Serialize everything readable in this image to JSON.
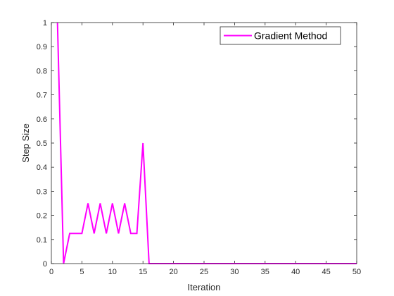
{
  "chart_data": {
    "type": "line",
    "xlabel": "Iteration",
    "ylabel": "Step Size",
    "xlim": [
      0,
      50
    ],
    "ylim": [
      0,
      1
    ],
    "xticks": [
      0,
      5,
      10,
      15,
      20,
      25,
      30,
      35,
      40,
      45,
      50
    ],
    "yticks": [
      0,
      0.1,
      0.2,
      0.3,
      0.4,
      0.5,
      0.6,
      0.7,
      0.8,
      0.9,
      1
    ],
    "grid": false,
    "legend": {
      "position": "top-right"
    },
    "series": [
      {
        "name": "Gradient Method",
        "color": "#ff00ff",
        "x": [
          1,
          2,
          3,
          4,
          5,
          6,
          7,
          8,
          9,
          10,
          11,
          12,
          13,
          14,
          15,
          16,
          17,
          18,
          19,
          20,
          21,
          22,
          23,
          24,
          25,
          26,
          27,
          28,
          29,
          30,
          31,
          32,
          33,
          34,
          35,
          36,
          37,
          38,
          39,
          40,
          41,
          42,
          43,
          44,
          45,
          46,
          47,
          48,
          49,
          50
        ],
        "y": [
          1,
          0,
          0.125,
          0.125,
          0.125,
          0.25,
          0.125,
          0.25,
          0.125,
          0.25,
          0.125,
          0.25,
          0.125,
          0.125,
          0.5,
          0,
          0,
          0,
          0,
          0,
          0,
          0,
          0,
          0,
          0,
          0,
          0,
          0,
          0,
          0,
          0,
          0,
          0,
          0,
          0,
          0,
          0,
          0,
          0,
          0,
          0,
          0,
          0,
          0,
          0,
          0,
          0,
          0,
          0,
          0
        ]
      }
    ]
  }
}
